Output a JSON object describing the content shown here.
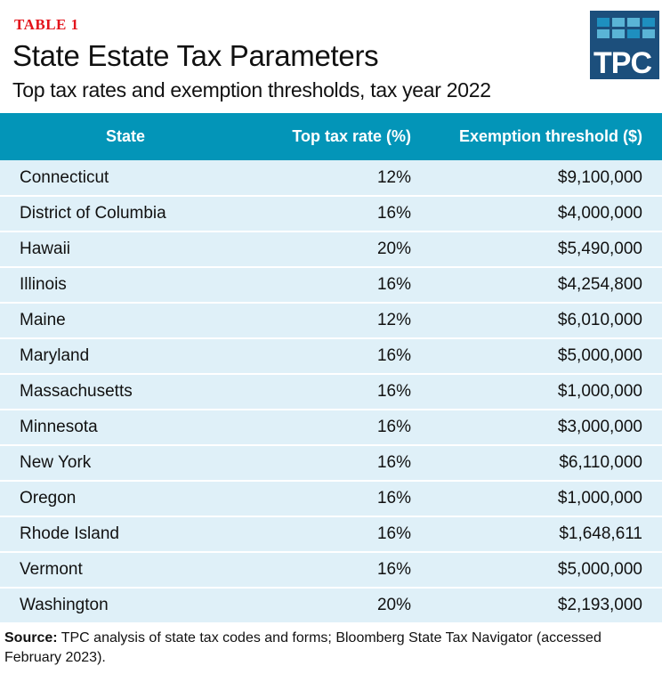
{
  "label": "TABLE 1",
  "title": "State Estate Tax Parameters",
  "subtitle": "Top tax rates and exemption thresholds, tax year 2022",
  "logo": {
    "text": "TPC",
    "colors": {
      "background": "#1c4f7c",
      "light": "#5ab4d6",
      "mid": "#1e8fbf"
    }
  },
  "colors": {
    "header": "#0395b8",
    "row": "#dff0f8",
    "label": "#e3131b"
  },
  "table": {
    "headers": [
      "State",
      "Top tax rate (%)",
      "Exemption threshold ($)"
    ],
    "rows": [
      [
        "Connecticut",
        "12%",
        "$9,100,000"
      ],
      [
        "District of Columbia",
        "16%",
        "$4,000,000"
      ],
      [
        "Hawaii",
        "20%",
        "$5,490,000"
      ],
      [
        "Illinois",
        "16%",
        "$4,254,800"
      ],
      [
        "Maine",
        "12%",
        "$6,010,000"
      ],
      [
        "Maryland",
        "16%",
        "$5,000,000"
      ],
      [
        "Massachusetts",
        "16%",
        "$1,000,000"
      ],
      [
        "Minnesota",
        "16%",
        "$3,000,000"
      ],
      [
        "New York",
        "16%",
        "$6,110,000"
      ],
      [
        "Oregon",
        "16%",
        "$1,000,000"
      ],
      [
        "Rhode Island",
        "16%",
        "$1,648,611"
      ],
      [
        "Vermont",
        "16%",
        "$5,000,000"
      ],
      [
        "Washington",
        "20%",
        "$2,193,000"
      ]
    ]
  },
  "source": {
    "label": "Source:",
    "text": " TPC analysis of state tax codes and forms; Bloomberg State Tax Navigator (accessed February 2023)."
  }
}
